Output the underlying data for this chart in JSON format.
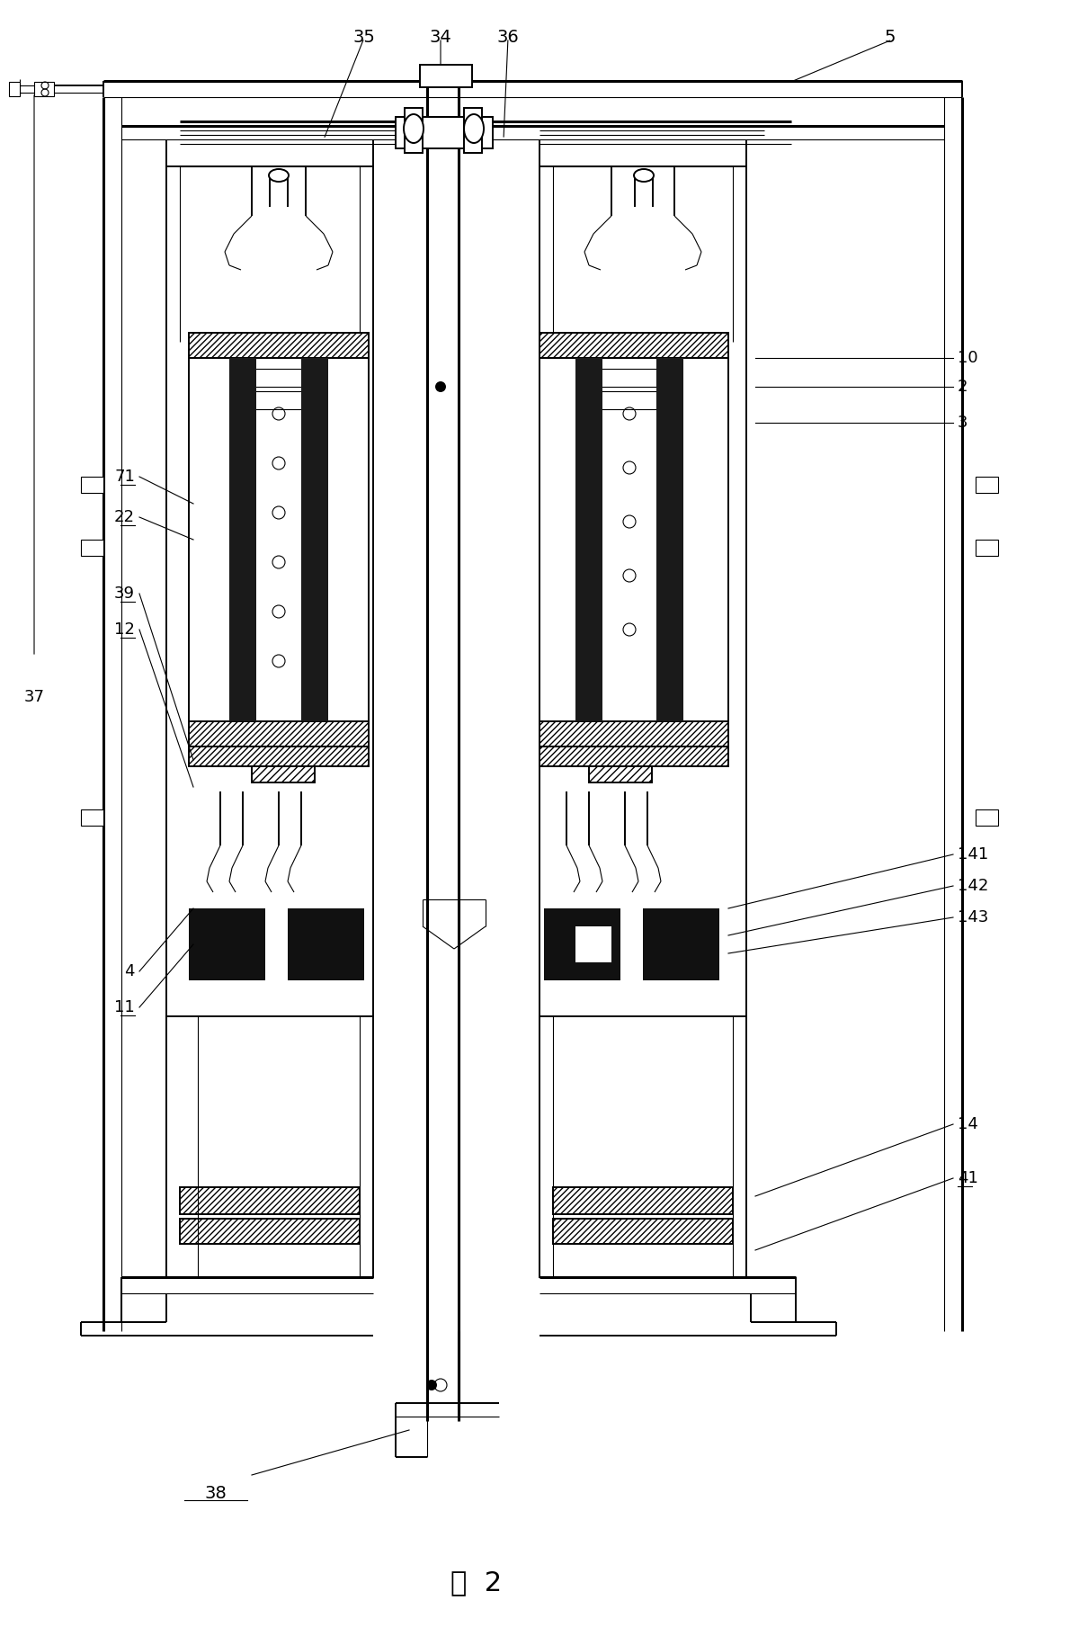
{
  "title": "图  2",
  "bg_color": "#ffffff",
  "line_color": "#000000",
  "fig_width": 12.0,
  "fig_height": 18.19,
  "dpi": 100,
  "xlim": [
    0,
    1
  ],
  "ylim": [
    0,
    1
  ],
  "lw_thin": 0.8,
  "lw_med": 1.4,
  "lw_thick": 2.2
}
